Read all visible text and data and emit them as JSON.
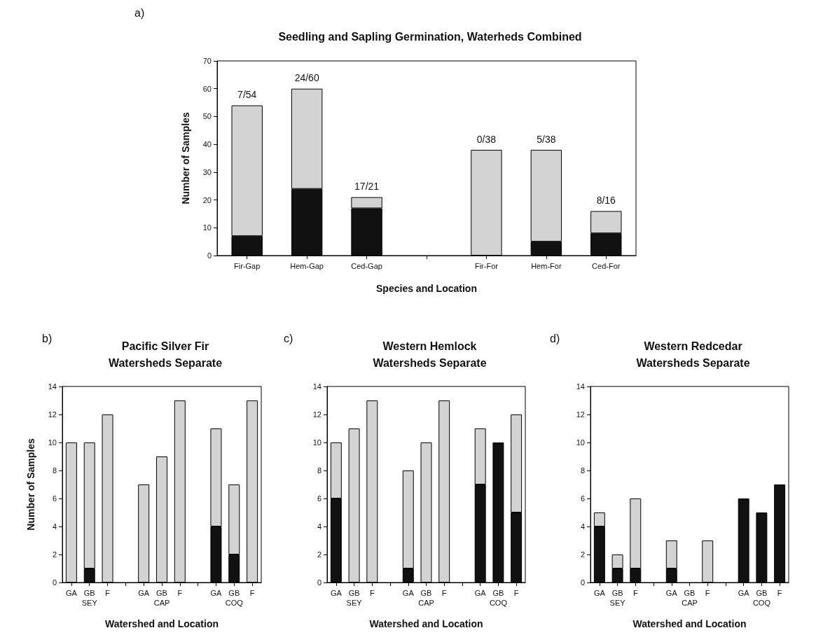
{
  "chart_data": [
    {
      "type": "bar",
      "title": "Seedling and Sapling Germination, Waterheds Combined",
      "xlabel": "Species and Location",
      "ylabel": "Number of Samples",
      "annotations": [
        "a)",
        {
          "text": "7/54",
          "x": "Fir-Gap",
          "y": 54
        },
        {
          "text": "24/60",
          "x": "Hem-Gap",
          "y": 60
        },
        {
          "text": "17/21",
          "x": "Ced-Gap",
          "y": 21
        },
        {
          "text": "0/38",
          "x": "Fir-For",
          "y": 38
        },
        {
          "text": "5/38",
          "x": "Hem-For",
          "y": 38
        },
        {
          "text": "8/16",
          "x": "Ced-For",
          "y": 16
        }
      ],
      "categories": [
        "Fir-Gap",
        "Hem-Gap",
        "Ced-Gap",
        null,
        "Fir-For",
        "Hem-For",
        "Ced-For"
      ],
      "stacked": true,
      "ylim": [
        0,
        70
      ],
      "yticks": [
        0,
        10,
        20,
        30,
        40,
        50,
        60,
        70
      ],
      "series": [
        {
          "color": "#111111",
          "values": [
            7,
            24,
            17,
            null,
            0,
            5,
            8
          ]
        },
        {
          "color": "#d3d3d3",
          "values": [
            47,
            36,
            4,
            null,
            38,
            33,
            8
          ]
        }
      ]
    },
    {
      "type": "bar",
      "title": "Pacific Silver Fir\nWatersheds Separate",
      "xlabel": "Watershed and Location",
      "ylabel": "Number of Samples",
      "annotations": [
        "b)"
      ],
      "categories": [
        "GA",
        "GB\nSEY",
        "F",
        null,
        "GA",
        "GB\nCAP",
        "F",
        null,
        "GA",
        "GB\nCOQ",
        "F"
      ],
      "stacked": true,
      "ylim": [
        0,
        14
      ],
      "yticks": [
        0,
        2,
        4,
        6,
        8,
        10,
        12,
        14
      ],
      "series": [
        {
          "color": "#111111",
          "values": [
            0,
            1,
            0,
            null,
            0,
            0,
            0,
            null,
            4,
            2,
            0
          ]
        },
        {
          "color": "#d3d3d3",
          "values": [
            10,
            9,
            12,
            null,
            7,
            9,
            13,
            null,
            7,
            5,
            13
          ]
        }
      ]
    },
    {
      "type": "bar",
      "title": "Western Hemlock\nWatersheds Separate",
      "xlabel": "Watershed and Location",
      "annotations": [
        "c)"
      ],
      "categories": [
        "GA",
        "GB\nSEY",
        "F",
        null,
        "GA",
        "GB\nCAP",
        "F",
        null,
        "GA",
        "GB\nCOQ",
        "F"
      ],
      "stacked": true,
      "ylim": [
        0,
        14
      ],
      "yticks": [
        0,
        2,
        4,
        6,
        8,
        10,
        12,
        14
      ],
      "series": [
        {
          "color": "#111111",
          "values": [
            6,
            0,
            0,
            null,
            1,
            0,
            0,
            null,
            7,
            10,
            5
          ]
        },
        {
          "color": "#d3d3d3",
          "values": [
            4,
            11,
            13,
            null,
            7,
            10,
            13,
            null,
            4,
            0,
            7
          ]
        }
      ]
    },
    {
      "type": "bar",
      "title": "Western Redcedar\nWatersheds Separate",
      "xlabel": "Watershed and Location",
      "annotations": [
        "d)"
      ],
      "categories": [
        "GA",
        "GB\nSEY",
        "F",
        null,
        "GA",
        "GB\nCAP",
        "F",
        null,
        "GA",
        "GB\nCOQ",
        "F"
      ],
      "stacked": true,
      "ylim": [
        0,
        14
      ],
      "yticks": [
        0,
        2,
        4,
        6,
        8,
        10,
        12,
        14
      ],
      "series": [
        {
          "color": "#111111",
          "values": [
            4,
            1,
            1,
            null,
            1,
            0,
            0,
            null,
            6,
            5,
            7
          ]
        },
        {
          "color": "#d3d3d3",
          "values": [
            1,
            1,
            5,
            null,
            2,
            0,
            3,
            null,
            0,
            0,
            0
          ]
        }
      ]
    }
  ]
}
